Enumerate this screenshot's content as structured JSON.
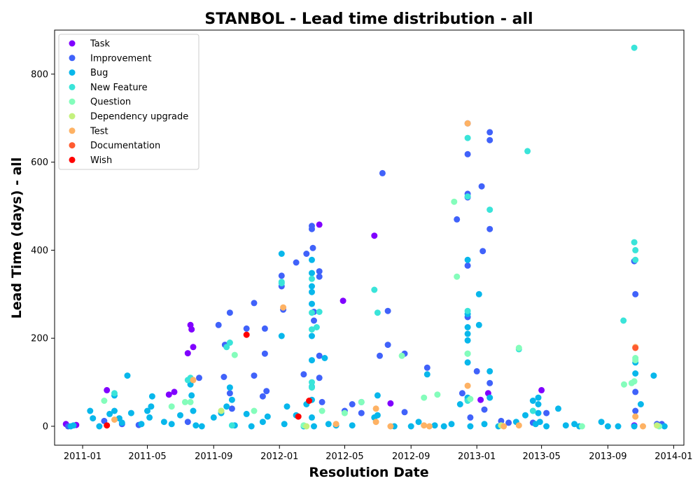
{
  "chart_data": {
    "type": "scatter",
    "title": "STANBOL - Lead time distribution - all",
    "xlabel": "Resolution Date",
    "ylabel": "Lead Time (days) - all",
    "xlim": [
      "2010-11-10",
      "2014-01-20"
    ],
    "ylim": [
      -43,
      900
    ],
    "xticks": [
      "2011-01",
      "2011-05",
      "2011-09",
      "2012-01",
      "2012-05",
      "2012-09",
      "2013-01",
      "2013-05",
      "2013-09",
      "2014-01"
    ],
    "yticks": [
      0,
      200,
      400,
      600,
      800
    ],
    "grid": false,
    "legend_position": "top-left",
    "series": [
      {
        "name": "Task",
        "color": "#8000ff",
        "points": [
          [
            "2010-12-01",
            5
          ],
          [
            "2010-12-20",
            3
          ],
          [
            "2011-02-15",
            82
          ],
          [
            "2011-06-10",
            72
          ],
          [
            "2011-06-20",
            78
          ],
          [
            "2011-07-15",
            166
          ],
          [
            "2011-07-20",
            230
          ],
          [
            "2011-07-22",
            220
          ],
          [
            "2011-07-25",
            180
          ],
          [
            "2012-03-15",
            458
          ],
          [
            "2012-04-28",
            285
          ],
          [
            "2012-06-25",
            433
          ],
          [
            "2012-07-25",
            52
          ],
          [
            "2013-01-08",
            60
          ],
          [
            "2013-01-22",
            75
          ],
          [
            "2013-05-01",
            82
          ],
          [
            "2013-10-20",
            2
          ]
        ]
      },
      {
        "name": "Improvement",
        "color": "#4062fa",
        "points": [
          [
            "2010-12-05",
            0
          ],
          [
            "2011-02-10",
            12
          ],
          [
            "2011-03-15",
            5
          ],
          [
            "2011-04-15",
            3
          ],
          [
            "2011-07-15",
            10
          ],
          [
            "2011-08-05",
            110
          ],
          [
            "2011-09-10",
            230
          ],
          [
            "2011-09-20",
            112
          ],
          [
            "2011-09-22",
            185
          ],
          [
            "2011-10-01",
            258
          ],
          [
            "2011-10-01",
            75
          ],
          [
            "2011-10-05",
            40
          ],
          [
            "2011-11-01",
            222
          ],
          [
            "2011-11-15",
            280
          ],
          [
            "2011-11-15",
            115
          ],
          [
            "2011-12-01",
            68
          ],
          [
            "2011-12-05",
            222
          ],
          [
            "2011-12-05",
            165
          ],
          [
            "2011-12-08",
            80
          ],
          [
            "2012-01-05",
            342
          ],
          [
            "2012-01-05",
            318
          ],
          [
            "2012-01-08",
            265
          ],
          [
            "2012-02-01",
            372
          ],
          [
            "2012-02-15",
            118
          ],
          [
            "2012-02-20",
            392
          ],
          [
            "2012-03-01",
            455
          ],
          [
            "2012-03-01",
            448
          ],
          [
            "2012-03-03",
            405
          ],
          [
            "2012-03-05",
            260
          ],
          [
            "2012-03-05",
            240
          ],
          [
            "2012-03-15",
            352
          ],
          [
            "2012-03-15",
            340
          ],
          [
            "2012-03-15",
            160
          ],
          [
            "2012-03-15",
            110
          ],
          [
            "2012-03-20",
            55
          ],
          [
            "2012-05-01",
            35
          ],
          [
            "2012-05-15",
            50
          ],
          [
            "2012-06-01",
            30
          ],
          [
            "2012-07-05",
            160
          ],
          [
            "2012-07-10",
            575
          ],
          [
            "2012-07-20",
            262
          ],
          [
            "2012-07-20",
            185
          ],
          [
            "2012-08-20",
            165
          ],
          [
            "2012-08-20",
            32
          ],
          [
            "2012-10-01",
            133
          ],
          [
            "2012-11-25",
            470
          ],
          [
            "2012-12-05",
            75
          ],
          [
            "2012-12-15",
            688
          ],
          [
            "2012-12-15",
            618
          ],
          [
            "2012-12-15",
            528
          ],
          [
            "2012-12-15",
            520
          ],
          [
            "2012-12-15",
            365
          ],
          [
            "2012-12-15",
            248
          ],
          [
            "2012-12-15",
            60
          ],
          [
            "2012-12-20",
            20
          ],
          [
            "2013-01-01",
            125
          ],
          [
            "2013-01-10",
            545
          ],
          [
            "2013-01-12",
            398
          ],
          [
            "2013-01-15",
            38
          ],
          [
            "2013-01-25",
            668
          ],
          [
            "2013-01-25",
            650
          ],
          [
            "2013-01-25",
            448
          ],
          [
            "2013-01-25",
            98
          ],
          [
            "2013-02-15",
            12
          ],
          [
            "2013-03-01",
            8
          ],
          [
            "2013-04-15",
            8
          ],
          [
            "2013-05-10",
            30
          ],
          [
            "2013-10-20",
            375
          ],
          [
            "2013-10-22",
            300
          ],
          [
            "2013-10-22",
            78
          ],
          [
            "2013-10-22",
            35
          ],
          [
            "2013-12-01",
            5
          ],
          [
            "2013-12-10",
            5
          ]
        ]
      },
      {
        "name": "Bug",
        "color": "#08b7eb",
        "points": [
          [
            "2010-12-10",
            0
          ],
          [
            "2010-12-15",
            2
          ],
          [
            "2011-01-15",
            35
          ],
          [
            "2011-01-20",
            18
          ],
          [
            "2011-02-01",
            0
          ],
          [
            "2011-02-20",
            28
          ],
          [
            "2011-03-01",
            70
          ],
          [
            "2011-03-01",
            35
          ],
          [
            "2011-03-10",
            18
          ],
          [
            "2011-03-15",
            8
          ],
          [
            "2011-03-25",
            115
          ],
          [
            "2011-04-01",
            30
          ],
          [
            "2011-04-20",
            5
          ],
          [
            "2011-05-01",
            35
          ],
          [
            "2011-05-05",
            20
          ],
          [
            "2011-05-08",
            45
          ],
          [
            "2011-05-10",
            68
          ],
          [
            "2011-06-01",
            10
          ],
          [
            "2011-06-15",
            5
          ],
          [
            "2011-07-01",
            25
          ],
          [
            "2011-07-20",
            95
          ],
          [
            "2011-07-22",
            70
          ],
          [
            "2011-07-25",
            35
          ],
          [
            "2011-07-30",
            2
          ],
          [
            "2011-08-10",
            0
          ],
          [
            "2011-09-01",
            20
          ],
          [
            "2011-09-15",
            30
          ],
          [
            "2011-09-25",
            45
          ],
          [
            "2011-10-01",
            88
          ],
          [
            "2011-10-05",
            60
          ],
          [
            "2011-10-10",
            2
          ],
          [
            "2011-11-01",
            28
          ],
          [
            "2011-11-10",
            0
          ],
          [
            "2011-12-01",
            10
          ],
          [
            "2011-12-10",
            22
          ],
          [
            "2012-01-05",
            392
          ],
          [
            "2012-01-05",
            205
          ],
          [
            "2012-01-10",
            5
          ],
          [
            "2012-01-15",
            45
          ],
          [
            "2012-02-01",
            25
          ],
          [
            "2012-02-15",
            0
          ],
          [
            "2012-02-20",
            50
          ],
          [
            "2012-03-01",
            378
          ],
          [
            "2012-03-01",
            348
          ],
          [
            "2012-03-01",
            318
          ],
          [
            "2012-03-01",
            305
          ],
          [
            "2012-03-01",
            278
          ],
          [
            "2012-03-01",
            205
          ],
          [
            "2012-03-01",
            150
          ],
          [
            "2012-03-01",
            90
          ],
          [
            "2012-03-01",
            60
          ],
          [
            "2012-03-01",
            20
          ],
          [
            "2012-03-05",
            0
          ],
          [
            "2012-03-25",
            155
          ],
          [
            "2012-04-01",
            5
          ],
          [
            "2012-04-15",
            2
          ],
          [
            "2012-05-15",
            2
          ],
          [
            "2012-06-01",
            55
          ],
          [
            "2012-06-25",
            20
          ],
          [
            "2012-07-01",
            70
          ],
          [
            "2012-07-01",
            25
          ],
          [
            "2012-08-01",
            0
          ],
          [
            "2012-09-01",
            0
          ],
          [
            "2012-09-15",
            10
          ],
          [
            "2012-10-01",
            118
          ],
          [
            "2012-10-15",
            2
          ],
          [
            "2012-11-01",
            0
          ],
          [
            "2012-11-15",
            5
          ],
          [
            "2012-12-01",
            50
          ],
          [
            "2012-12-15",
            378
          ],
          [
            "2012-12-15",
            255
          ],
          [
            "2012-12-15",
            225
          ],
          [
            "2012-12-15",
            210
          ],
          [
            "2012-12-15",
            195
          ],
          [
            "2012-12-15",
            145
          ],
          [
            "2012-12-15",
            65
          ],
          [
            "2012-12-20",
            0
          ],
          [
            "2013-01-05",
            300
          ],
          [
            "2013-01-05",
            230
          ],
          [
            "2013-01-15",
            5
          ],
          [
            "2013-01-25",
            125
          ],
          [
            "2013-01-25",
            65
          ],
          [
            "2013-02-10",
            0
          ],
          [
            "2013-03-15",
            10
          ],
          [
            "2013-04-01",
            25
          ],
          [
            "2013-04-15",
            58
          ],
          [
            "2013-04-20",
            5
          ],
          [
            "2013-04-25",
            65
          ],
          [
            "2013-04-25",
            50
          ],
          [
            "2013-04-25",
            30
          ],
          [
            "2013-04-28",
            10
          ],
          [
            "2013-05-10",
            0
          ],
          [
            "2013-06-01",
            40
          ],
          [
            "2013-06-15",
            2
          ],
          [
            "2013-07-01",
            5
          ],
          [
            "2013-07-10",
            0
          ],
          [
            "2013-08-20",
            10
          ],
          [
            "2013-09-01",
            0
          ],
          [
            "2013-09-20",
            0
          ],
          [
            "2013-10-20",
            0
          ],
          [
            "2013-10-22",
            145
          ],
          [
            "2013-10-22",
            120
          ],
          [
            "2013-11-01",
            50
          ],
          [
            "2013-11-25",
            115
          ],
          [
            "2013-12-15",
            0
          ]
        ]
      },
      {
        "name": "New Feature",
        "color": "#3ae4d9",
        "points": [
          [
            "2011-03-01",
            75
          ],
          [
            "2011-07-15",
            105
          ],
          [
            "2011-07-20",
            110
          ],
          [
            "2011-09-25",
            180
          ],
          [
            "2011-10-01",
            190
          ],
          [
            "2011-10-05",
            2
          ],
          [
            "2012-01-05",
            328
          ],
          [
            "2012-01-05",
            325
          ],
          [
            "2012-03-01",
            335
          ],
          [
            "2012-03-01",
            258
          ],
          [
            "2012-03-01",
            220
          ],
          [
            "2012-03-01",
            100
          ],
          [
            "2012-03-01",
            88
          ],
          [
            "2012-03-10",
            225
          ],
          [
            "2012-03-15",
            260
          ],
          [
            "2012-06-25",
            310
          ],
          [
            "2012-07-01",
            258
          ],
          [
            "2012-12-15",
            655
          ],
          [
            "2012-12-15",
            522
          ],
          [
            "2012-12-15",
            262
          ],
          [
            "2012-12-15",
            165
          ],
          [
            "2012-12-15",
            58
          ],
          [
            "2013-01-25",
            492
          ],
          [
            "2013-03-20",
            175
          ],
          [
            "2013-04-05",
            625
          ],
          [
            "2013-04-15",
            35
          ],
          [
            "2013-09-30",
            240
          ],
          [
            "2013-10-20",
            860
          ],
          [
            "2013-10-20",
            418
          ],
          [
            "2013-10-22",
            400
          ],
          [
            "2013-10-22",
            378
          ]
        ]
      },
      {
        "name": "Question",
        "color": "#84fdbb",
        "points": [
          [
            "2011-02-10",
            58
          ],
          [
            "2011-06-15",
            45
          ],
          [
            "2011-07-10",
            55
          ],
          [
            "2011-07-20",
            55
          ],
          [
            "2011-09-15",
            35
          ],
          [
            "2011-10-10",
            162
          ],
          [
            "2011-11-15",
            35
          ],
          [
            "2012-02-15",
            2
          ],
          [
            "2012-03-20",
            35
          ],
          [
            "2012-05-01",
            30
          ],
          [
            "2012-06-01",
            55
          ],
          [
            "2012-08-15",
            160
          ],
          [
            "2012-09-25",
            65
          ],
          [
            "2012-10-20",
            72
          ],
          [
            "2012-11-20",
            510
          ],
          [
            "2012-11-25",
            340
          ],
          [
            "2012-12-15",
            165
          ],
          [
            "2012-12-20",
            62
          ],
          [
            "2013-03-20",
            178
          ],
          [
            "2013-07-15",
            0
          ],
          [
            "2013-10-01",
            95
          ],
          [
            "2013-10-15",
            98
          ],
          [
            "2013-10-20",
            102
          ],
          [
            "2013-10-22",
            155
          ],
          [
            "2013-10-22",
            150
          ],
          [
            "2013-12-05",
            0
          ]
        ]
      },
      {
        "name": "Dependency upgrade",
        "color": "#c4f17e",
        "points": [
          [
            "2011-09-15",
            35
          ],
          [
            "2012-02-20",
            0
          ],
          [
            "2013-02-15",
            2
          ],
          [
            "2013-12-01",
            2
          ]
        ]
      },
      {
        "name": "Test",
        "color": "#feb264",
        "points": [
          [
            "2011-03-01",
            15
          ],
          [
            "2011-07-25",
            105
          ],
          [
            "2012-01-08",
            270
          ],
          [
            "2012-04-15",
            5
          ],
          [
            "2012-06-28",
            40
          ],
          [
            "2012-06-28",
            10
          ],
          [
            "2012-07-25",
            0
          ],
          [
            "2012-09-25",
            2
          ],
          [
            "2012-10-05",
            0
          ],
          [
            "2012-12-15",
            688
          ],
          [
            "2012-12-15",
            92
          ],
          [
            "2013-02-20",
            0
          ],
          [
            "2013-03-20",
            2
          ],
          [
            "2013-10-22",
            180
          ],
          [
            "2013-10-22",
            22
          ],
          [
            "2013-11-05",
            0
          ]
        ]
      },
      {
        "name": "Documentation",
        "color": "#ff5b30",
        "points": [
          [
            "2013-10-22",
            178
          ]
        ]
      },
      {
        "name": "Wish",
        "color": "#ff0000",
        "points": [
          [
            "2011-02-15",
            2
          ],
          [
            "2011-11-01",
            208
          ],
          [
            "2012-02-05",
            22
          ],
          [
            "2012-02-25",
            58
          ]
        ]
      }
    ]
  }
}
